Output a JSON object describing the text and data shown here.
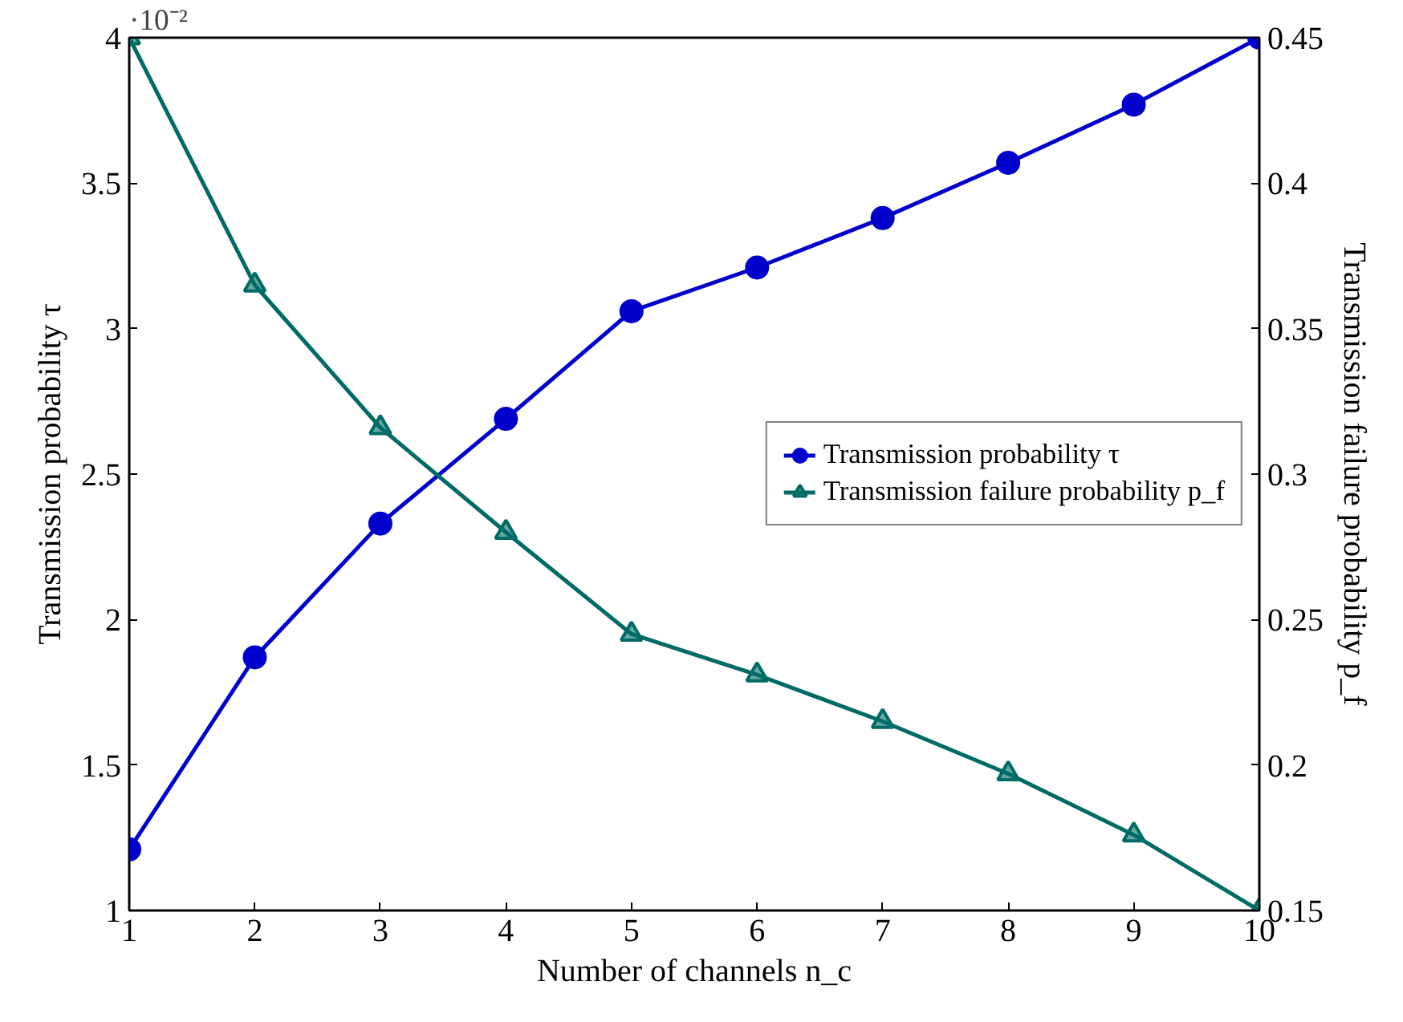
{
  "chart_data": {
    "type": "line",
    "xlabel": "Number of channels n_c",
    "ylabel": "Transmission probability τ",
    "y2label": "Transmission failure probability p_f",
    "x": [
      1,
      2,
      3,
      4,
      5,
      6,
      7,
      8,
      9,
      10
    ],
    "series": [
      {
        "name": "Transmission probability τ",
        "color": "#0000cc",
        "marker": "circle",
        "values": [
          1.21,
          1.87,
          2.33,
          2.69,
          3.06,
          3.21,
          3.38,
          3.57,
          3.77,
          4.0
        ]
      },
      {
        "name": "Transmission failure probability p_f",
        "color": "#006b66",
        "marker": "triangle",
        "axis": "y2",
        "values": [
          0.45,
          0.365,
          0.316,
          0.28,
          0.245,
          0.231,
          0.215,
          0.197,
          0.176,
          0.15
        ]
      }
    ],
    "xlim": [
      1,
      10
    ],
    "xticks": [
      1,
      2,
      3,
      4,
      5,
      6,
      7,
      8,
      9,
      10
    ],
    "ylim": [
      1,
      4
    ],
    "yticks": [
      1,
      1.5,
      2,
      2.5,
      3,
      3.5,
      4
    ],
    "y2lim": [
      0.15,
      0.45
    ],
    "y2ticks": [
      0.15,
      0.2,
      0.25,
      0.3,
      0.35,
      0.4,
      0.45
    ],
    "annotations": [
      "·10⁻²"
    ],
    "grid": false,
    "legend": "right",
    "line_style": "solid"
  }
}
